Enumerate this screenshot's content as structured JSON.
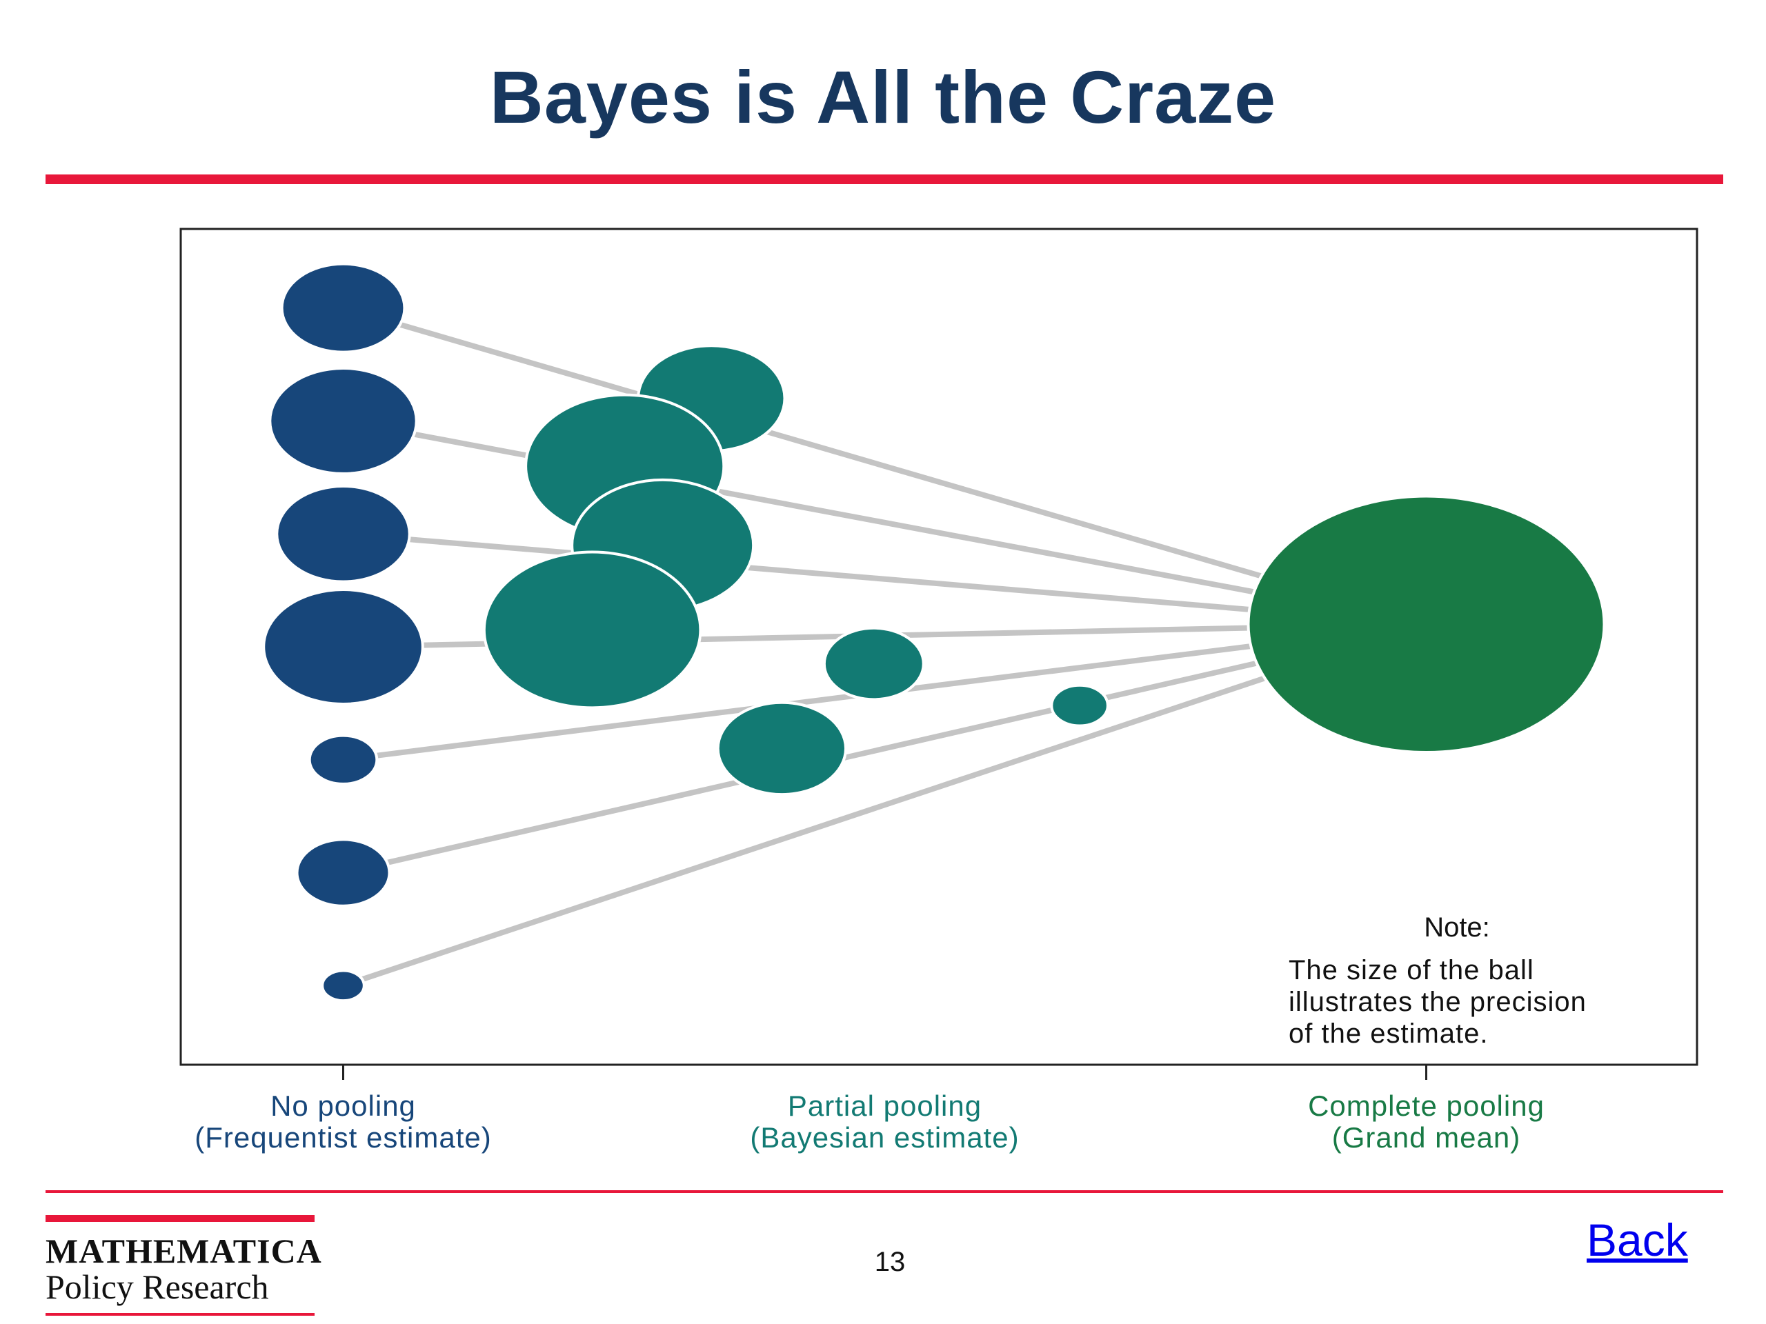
{
  "slide": {
    "title": "Bayes is All the Craze",
    "page_number": "13",
    "back_link": "Back"
  },
  "logo": {
    "line1": "MATHEMATICA",
    "line2": "Policy Research"
  },
  "colors": {
    "no_pooling": "#17467a",
    "partial_pooling": "#127a73",
    "complete_pooling": "#187a45",
    "connector": "#c4c4c4",
    "accent_red": "#e8173a",
    "title": "#17375e"
  },
  "chart_data": {
    "type": "scatter",
    "title": "",
    "categories": [
      {
        "label_line1": "No pooling",
        "label_line2": "(Frequentist estimate)",
        "color": "#17467a"
      },
      {
        "label_line1": "Partial pooling",
        "label_line2": "(Bayesian estimate)",
        "color": "#127a73"
      },
      {
        "label_line1": "Complete pooling",
        "label_line2": "(Grand mean)",
        "color": "#187a45"
      }
    ],
    "grand_mean": {
      "x": 2.0,
      "y": 5.2,
      "precision": 10.0
    },
    "estimates": [
      {
        "no_pooling_y": 8.0,
        "no_pooling_precision": 1.1,
        "partial_x": 0.68,
        "partial_y": 7.2,
        "partial_precision": 1.6
      },
      {
        "no_pooling_y": 7.0,
        "no_pooling_precision": 1.6,
        "partial_x": 0.52,
        "partial_y": 6.6,
        "partial_precision": 3.0
      },
      {
        "no_pooling_y": 6.0,
        "no_pooling_precision": 1.3,
        "partial_x": 0.59,
        "partial_y": 5.9,
        "partial_precision": 2.5
      },
      {
        "no_pooling_y": 5.0,
        "no_pooling_precision": 1.9,
        "partial_x": 0.46,
        "partial_y": 5.15,
        "partial_precision": 3.6
      },
      {
        "no_pooling_y": 4.0,
        "no_pooling_precision": 0.3,
        "partial_x": 0.98,
        "partial_y": 4.85,
        "partial_precision": 0.7
      },
      {
        "no_pooling_y": 3.0,
        "no_pooling_precision": 0.6,
        "partial_x": 0.81,
        "partial_y": 4.1,
        "partial_precision": 1.2
      },
      {
        "no_pooling_y": 2.0,
        "no_pooling_precision": 0.1,
        "partial_x": 1.36,
        "partial_y": 4.48,
        "partial_precision": 0.2
      }
    ],
    "xlim": [
      -0.3,
      2.5
    ],
    "ylim": [
      1.3,
      8.7
    ],
    "grid": false,
    "legend": "none",
    "note": {
      "heading": "Note:",
      "lines": [
        "The size of the ball",
        "illustrates the precision",
        "of the estimate."
      ]
    }
  }
}
